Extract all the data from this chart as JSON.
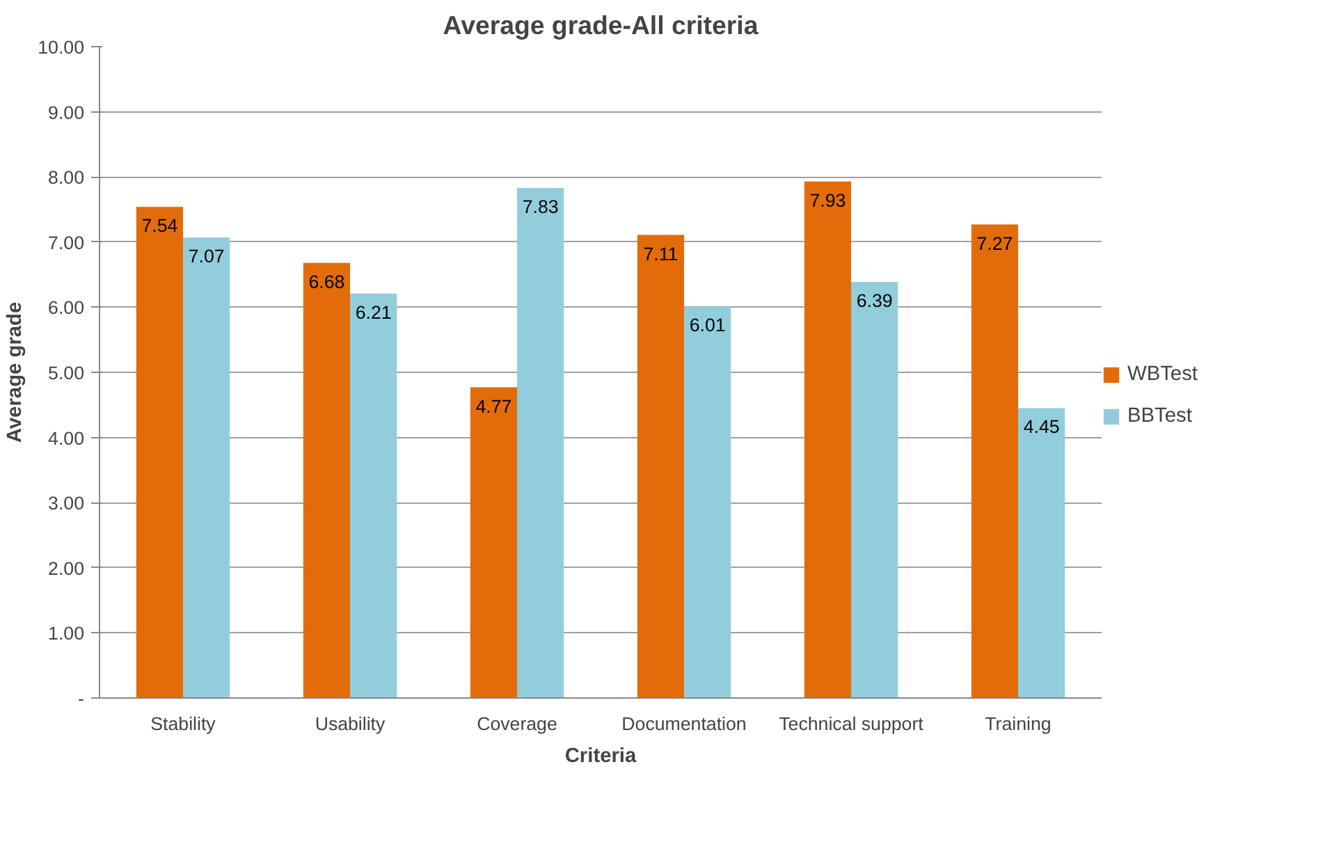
{
  "chart_data": {
    "type": "bar",
    "title": "Average grade-All criteria",
    "xlabel": "Criteria",
    "ylabel": "Average grade",
    "categories": [
      "Stability",
      "Usability",
      "Coverage",
      "Documentation",
      "Technical support",
      "Training"
    ],
    "series": [
      {
        "name": "WBTest",
        "color": "#e36c0a",
        "values": [
          7.54,
          6.68,
          4.77,
          7.11,
          7.93,
          7.27
        ]
      },
      {
        "name": "BBTest",
        "color": "#92cddc",
        "values": [
          7.07,
          6.21,
          7.83,
          6.01,
          6.39,
          4.45
        ]
      }
    ],
    "ylim": [
      0,
      10
    ],
    "yticks": [
      {
        "value": 0,
        "label": "-"
      },
      {
        "value": 1,
        "label": "1.00"
      },
      {
        "value": 2,
        "label": "2.00"
      },
      {
        "value": 3,
        "label": "3.00"
      },
      {
        "value": 4,
        "label": "4.00"
      },
      {
        "value": 5,
        "label": "5.00"
      },
      {
        "value": 6,
        "label": "6.00"
      },
      {
        "value": 7,
        "label": "7.00"
      },
      {
        "value": 8,
        "label": "8.00"
      },
      {
        "value": 9,
        "label": "9.00"
      },
      {
        "value": 10,
        "label": "10.00"
      }
    ],
    "grid": "y",
    "legend": "right",
    "data_labels": true
  }
}
